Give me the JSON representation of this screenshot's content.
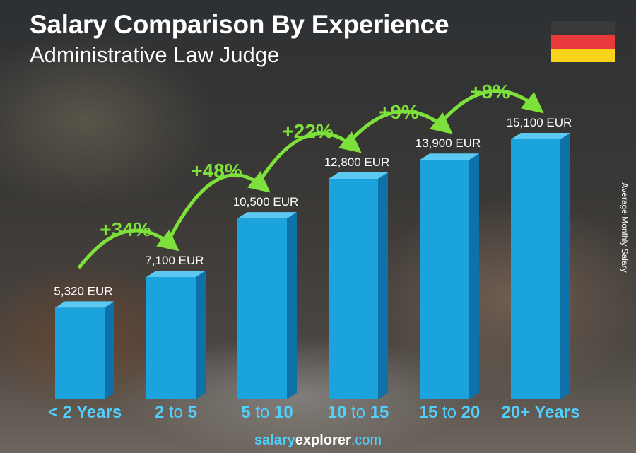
{
  "header": {
    "title": "Salary Comparison By Experience",
    "subtitle": "Administrative Law Judge"
  },
  "flag": {
    "colors": [
      "#3a3a3a",
      "#e8393c",
      "#f9d31a"
    ]
  },
  "colors": {
    "bar_front": "#1aa3dd",
    "bar_side": "#0e72a8",
    "bar_top": "#5cc9f2",
    "growth": "#7ee03a",
    "label": "#4fd0ff"
  },
  "chart_data": {
    "type": "bar",
    "ylabel": "Average Monthly Salary",
    "categories": [
      {
        "pre": "< 2 Years",
        "mid": "",
        "post": ""
      },
      {
        "pre": "2",
        "mid": " to ",
        "post": "5"
      },
      {
        "pre": "5",
        "mid": " to ",
        "post": "10"
      },
      {
        "pre": "10",
        "mid": " to ",
        "post": "15"
      },
      {
        "pre": "15",
        "mid": " to ",
        "post": "20"
      },
      {
        "pre": "20+ Years",
        "mid": "",
        "post": ""
      }
    ],
    "values": [
      5320,
      7100,
      10500,
      12800,
      13900,
      15100
    ],
    "value_labels": [
      "5,320 EUR",
      "7,100 EUR",
      "10,500 EUR",
      "12,800 EUR",
      "13,900 EUR",
      "15,100 EUR"
    ],
    "growth_labels": [
      "+34%",
      "+48%",
      "+22%",
      "+9%",
      "+8%"
    ],
    "ylim": [
      0,
      15100
    ]
  },
  "footer": {
    "part1": "salary",
    "part2": "explorer",
    "part3": ".com"
  }
}
